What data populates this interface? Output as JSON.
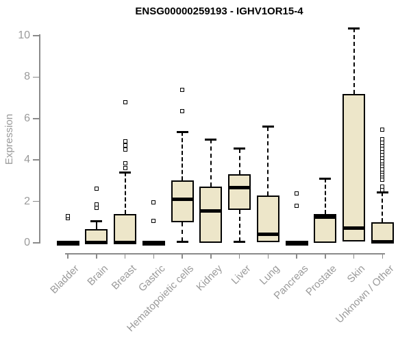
{
  "title": "ENSG00000259193 - IGHV1OR15-4",
  "chart_data": {
    "type": "box",
    "title": "ENSG00000259193 - IGHV1OR15-4",
    "xlabel": "",
    "ylabel": "Expression",
    "ylim": [
      0,
      10.4
    ],
    "yticks": [
      0,
      2,
      4,
      6,
      8,
      10
    ],
    "grid": false,
    "legend": false,
    "categories": [
      "Bladder",
      "Brain",
      "Breast",
      "Gastric",
      "Hematopoietic cells",
      "Kidney",
      "Liver",
      "Lung",
      "Pancreas",
      "Prostate",
      "Skin",
      "Unknown / Other"
    ],
    "series": [
      {
        "name": "Bladder",
        "whislo": 0,
        "q1": 0,
        "median": 0,
        "q3": 0,
        "whishi": 0,
        "outliers": [
          1.2,
          1.3
        ]
      },
      {
        "name": "Brain",
        "whislo": 0,
        "q1": 0,
        "median": 0.02,
        "q3": 0.65,
        "whishi": 1.05,
        "outliers": [
          1.7,
          1.85,
          2.6
        ]
      },
      {
        "name": "Breast",
        "whislo": 0,
        "q1": 0,
        "median": 0.03,
        "q3": 1.4,
        "whishi": 3.4,
        "outliers": [
          3.6,
          3.85,
          4.5,
          4.7,
          4.9,
          6.8
        ]
      },
      {
        "name": "Gastric",
        "whislo": 0,
        "q1": 0,
        "median": 0,
        "q3": 0,
        "whishi": 0,
        "outliers": [
          1.05,
          1.95
        ]
      },
      {
        "name": "Hematopoietic cells",
        "whislo": 0.05,
        "q1": 1.0,
        "median": 2.1,
        "q3": 3.0,
        "whishi": 5.35,
        "outliers": [
          6.35,
          7.4
        ]
      },
      {
        "name": "Kidney",
        "whislo": 0,
        "q1": 0,
        "median": 1.55,
        "q3": 2.7,
        "whishi": 5.0,
        "outliers": []
      },
      {
        "name": "Liver",
        "whislo": 0.05,
        "q1": 1.6,
        "median": 2.65,
        "q3": 3.3,
        "whishi": 4.55,
        "outliers": []
      },
      {
        "name": "Lung",
        "whislo": 0.03,
        "q1": 0.03,
        "median": 0.4,
        "q3": 2.3,
        "whishi": 5.6,
        "outliers": []
      },
      {
        "name": "Pancreas",
        "whislo": 0,
        "q1": 0,
        "median": 0,
        "q3": 0,
        "whishi": 0,
        "outliers": [
          1.8,
          2.4
        ]
      },
      {
        "name": "Prostate",
        "whislo": 0,
        "q1": 0,
        "median": 1.25,
        "q3": 1.4,
        "whishi": 3.1,
        "outliers": []
      },
      {
        "name": "Skin",
        "whislo": 0.08,
        "q1": 0.08,
        "median": 0.7,
        "q3": 7.2,
        "whishi": 10.35,
        "outliers": []
      },
      {
        "name": "Unknown / Other",
        "whislo": 0,
        "q1": 0,
        "median": 0.05,
        "q3": 1.0,
        "whishi": 2.45,
        "outliers": [
          2.55,
          2.7,
          3.05,
          3.2,
          3.3,
          3.45,
          3.55,
          3.7,
          3.85,
          3.95,
          4.1,
          4.25,
          4.4,
          4.55,
          4.7,
          4.85,
          5.0,
          5.45
        ]
      }
    ],
    "colors": {
      "box_fill": "#EDE6C9",
      "box_border": "#000000",
      "median": "#000000",
      "axis": "#8A8A8A",
      "tick_text": "#9A9A9A",
      "title_text": "#000000",
      "background": "#FFFFFF"
    }
  }
}
